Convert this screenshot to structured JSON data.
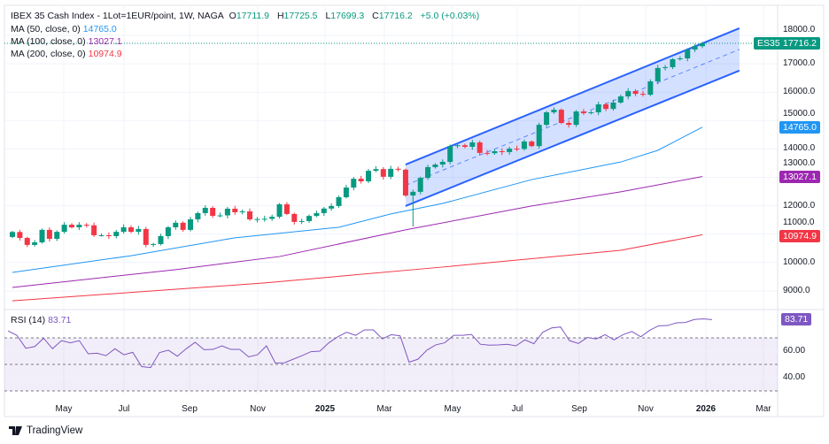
{
  "header": {
    "symbol_title": "IBEX 35 Cash Index - 1Lot=1EUR/point, 1W, NAGA",
    "open_label": "O",
    "open": "17711.9",
    "high_label": "H",
    "high": "17725.5",
    "low_label": "L",
    "low": "17699.3",
    "close_label": "C",
    "close": "17716.2",
    "change": "+5.0 (+0.03%)"
  },
  "indicators": [
    {
      "label": "MA (50, close, 0)",
      "value": "14765.0",
      "color": "#2196f3"
    },
    {
      "label": "MA (100, close, 0)",
      "value": "13027.1",
      "color": "#9c27b0"
    },
    {
      "label": "MA (200, close, 0)",
      "value": "10974.9",
      "color": "#f23645"
    }
  ],
  "price_tags": {
    "symbol": "ES35",
    "last_price": "17716.2",
    "ma50": "14765.0",
    "ma100": "13027.1",
    "ma200": "10974.9"
  },
  "rsi": {
    "label": "RSI (14)",
    "value": "83.71",
    "color": "#7e57c2"
  },
  "colors": {
    "up": "#089981",
    "down": "#f23645",
    "channel": "#2962ff"
  },
  "branding": "TradingView",
  "chart_data": [
    {
      "type": "candlestick",
      "title": "IBEX 35 Cash Index - 1Lot=1EUR/point, 1W, NAGA",
      "timeframe": "1W",
      "ylim": [
        8600,
        18300
      ],
      "y_ticks": [
        "9000.0",
        "10000.0",
        "11000.0",
        "12000.0",
        "13000.0",
        "14000.0",
        "15000.0",
        "16000.0",
        "17000.0",
        "18000.0"
      ],
      "x_ticks": [
        "May",
        "Jul",
        "Sep",
        "Nov",
        "2025",
        "Mar",
        "May",
        "Jul",
        "Sep",
        "Nov",
        "2026",
        "Mar"
      ],
      "grid": true,
      "first_open": 10900,
      "closes": [
        11075,
        10865,
        10620,
        10710,
        11150,
        10835,
        11080,
        11330,
        11240,
        11330,
        11310,
        10960,
        10960,
        10930,
        11080,
        11240,
        11080,
        11180,
        10620,
        10650,
        10930,
        11240,
        11400,
        11150,
        11520,
        11740,
        11925,
        11645,
        11660,
        11895,
        11770,
        11800,
        11520,
        11530,
        11540,
        11610,
        12050,
        11710,
        11430,
        11460,
        11640,
        11740,
        11900,
        11990,
        12300,
        12640,
        12950,
        12860,
        13230,
        13290,
        13020,
        13300,
        13270,
        12360,
        12490,
        12980,
        13360,
        13450,
        13545,
        14100,
        14130,
        14075,
        14230,
        13860,
        13850,
        13920,
        13890,
        14010,
        14000,
        14260,
        14100,
        14850,
        15290,
        15380,
        14915,
        14850,
        15320,
        15260,
        15290,
        15570,
        15410,
        15635,
        15850,
        16040,
        15940,
        15910,
        16380,
        16850,
        16880,
        17160,
        17190,
        17500,
        17620,
        17716.2
      ],
      "moving_averages": [
        {
          "name": "MA (50, close, 0)",
          "color": "#2196f3",
          "points": [
            [
              0,
              9650
            ],
            [
              16,
              10240
            ],
            [
              30,
              10870
            ],
            [
              44,
              11240
            ],
            [
              51,
              11710
            ],
            [
              58,
              12080
            ],
            [
              70,
              12920
            ],
            [
              82,
              13540
            ],
            [
              87,
              13950
            ],
            [
              93,
              14765
            ]
          ]
        },
        {
          "name": "MA (100, close, 0)",
          "color": "#9c27b0",
          "points": [
            [
              0,
              9120
            ],
            [
              22,
              9750
            ],
            [
              36,
              10210
            ],
            [
              53,
              11150
            ],
            [
              70,
              11990
            ],
            [
              82,
              12490
            ],
            [
              93,
              13027.1
            ]
          ]
        },
        {
          "name": "MA (200, close, 0)",
          "color": "#f23645",
          "points": [
            [
              0,
              8650
            ],
            [
              34,
              9280
            ],
            [
              58,
              9840
            ],
            [
              82,
              10430
            ],
            [
              93,
              10974.9
            ]
          ]
        }
      ],
      "channel": {
        "upper": [
          [
            53,
            13450
          ],
          [
            98,
            18250
          ]
        ],
        "lower": [
          [
            53,
            11990
          ],
          [
            98,
            16760
          ]
        ]
      }
    },
    {
      "type": "line",
      "title": "RSI (14)",
      "ylim": [
        28,
        90
      ],
      "y_ticks": [
        "40.00",
        "60.00"
      ],
      "bands": [
        30,
        50,
        70
      ],
      "values": [
        75.3,
        71.9,
        62.2,
        63.4,
        69.7,
        61.8,
        67.9,
        66.3,
        67.9,
        58,
        58.4,
        56.6,
        61.8,
        57.3,
        59.1,
        48.3,
        47.6,
        58.9,
        60.7,
        56.2,
        61.8,
        66.7,
        61.1,
        61.3,
        64,
        61.3,
        61.3,
        55.7,
        57.3,
        64,
        51,
        51.2,
        53.9,
        56.6,
        59.6,
        60,
        66.3,
        70.8,
        74.2,
        71.9,
        76,
        76,
        69.2,
        72.4,
        71.5,
        51.7,
        53.9,
        60.7,
        64.7,
        66.3,
        71.9,
        71.9,
        72.6,
        65.2,
        64.5,
        64.7,
        65.2,
        64,
        68.5,
        65.6,
        74.2,
        77.5,
        78.2,
        67.9,
        65.8,
        70.3,
        69.2,
        72.4,
        68.5,
        72.4,
        74.8,
        70.8,
        75.7,
        79.1,
        79.3,
        81.3,
        81.6,
        83.8,
        84.3,
        83.71
      ]
    }
  ]
}
